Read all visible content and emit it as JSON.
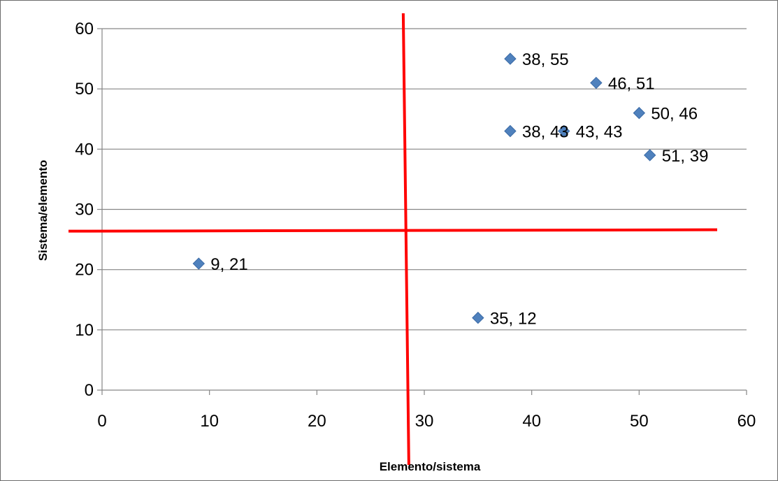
{
  "chart_data": {
    "type": "scatter",
    "title": "",
    "xlabel": "Elemento/sistema",
    "ylabel": "Sistema/elemento",
    "xlim": [
      0,
      60
    ],
    "ylim": [
      0,
      60
    ],
    "xticks": [
      0,
      10,
      20,
      30,
      40,
      50,
      60
    ],
    "yticks": [
      0,
      10,
      20,
      30,
      40,
      50,
      60
    ],
    "grid": "horizontal major gridlines",
    "legend": "none",
    "marker": "diamond",
    "marker_color": "#4f81bd",
    "points": [
      {
        "x": 38,
        "y": 55,
        "label": "38, 55"
      },
      {
        "x": 46,
        "y": 51,
        "label": "46, 51"
      },
      {
        "x": 50,
        "y": 46,
        "label": "50, 46"
      },
      {
        "x": 38,
        "y": 43,
        "label": "38, 43"
      },
      {
        "x": 43,
        "y": 43,
        "label": "43, 43"
      },
      {
        "x": 51,
        "y": 39,
        "label": "51, 39"
      },
      {
        "x": 9,
        "y": 21,
        "label": "9, 21"
      },
      {
        "x": 35,
        "y": 12,
        "label": "35, 12"
      }
    ],
    "quadrant_lines": {
      "color": "#ff0000",
      "vertical_x": 28.3,
      "horizontal_y": 26.5
    }
  }
}
